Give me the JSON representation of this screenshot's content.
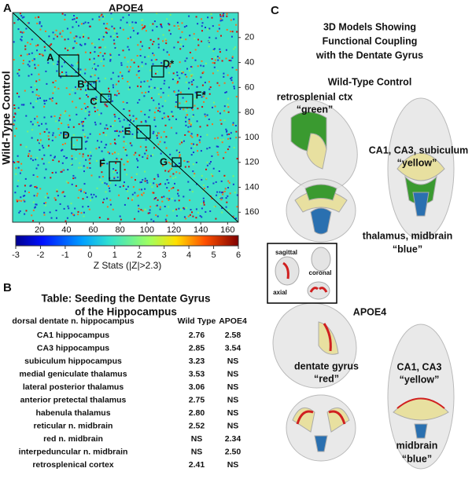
{
  "panel_a": {
    "label": "A",
    "title": "APOE4",
    "y_label": "Wild-Type Control",
    "matrix": {
      "xlim": [
        0,
        168
      ],
      "ylim": [
        0,
        168
      ],
      "xticks": [
        20,
        40,
        60,
        80,
        100,
        120,
        140,
        160
      ],
      "yticks": [
        20,
        40,
        60,
        80,
        100,
        120,
        140,
        160
      ]
    },
    "regions": [
      "A",
      "B",
      "C",
      "D*",
      "D",
      "E",
      "F*",
      "F",
      "G"
    ],
    "colorbar": {
      "lim": [
        -3,
        6
      ],
      "ticks": [
        -3,
        -2,
        -1,
        0,
        1,
        2,
        3,
        4,
        5,
        6
      ],
      "label": "Z Stats (|Z|>2.3)"
    }
  },
  "panel_b": {
    "label": "B",
    "title_lines": [
      "Table: Seeding the Dentate Gyrus",
      "of the Hippocampus"
    ],
    "header": [
      "dorsal dentate n. hippocampus",
      "Wild Type",
      "APOE4"
    ],
    "rows": [
      [
        "CA1 hippocampus",
        "2.76",
        "2.58"
      ],
      [
        "CA3 hippocampus",
        "2.85",
        "3.54"
      ],
      [
        "subiculum hippocampus",
        "3.23",
        "NS"
      ],
      [
        "medial geniculate thalamus",
        "3.53",
        "NS"
      ],
      [
        "lateral posterior thalamus",
        "3.06",
        "NS"
      ],
      [
        "anterior pretectal thalamus",
        "2.75",
        "NS"
      ],
      [
        "habenula thalamus",
        "2.80",
        "NS"
      ],
      [
        "reticular n. midbrain",
        "2.52",
        "NS"
      ],
      [
        "red n. midbrain",
        "NS",
        "2.34"
      ],
      [
        "interpeduncular n. midbrain",
        "NS",
        "2.50"
      ],
      [
        "retrosplenical cortex",
        "2.41",
        "NS"
      ]
    ]
  },
  "panel_c": {
    "label": "C",
    "title_lines": [
      "3D Models Showing",
      "Functional Coupling",
      "with the Dentate Gyrus"
    ],
    "wild_type": {
      "title": "Wild-Type Control",
      "annotations": [
        "retrosplenial ctx",
        "“green”",
        "CA1, CA3, subiculum",
        "“yellow”",
        "thalamus, midbrain",
        "“blue”"
      ]
    },
    "inset": [
      "sagittal",
      "coronal",
      "axial"
    ],
    "apoe4": {
      "title": "APOE4",
      "annotations": [
        "dentate gyrus",
        "“red”",
        "CA1, CA3",
        "“yellow”",
        "midbrain",
        "“blue”"
      ]
    }
  }
}
